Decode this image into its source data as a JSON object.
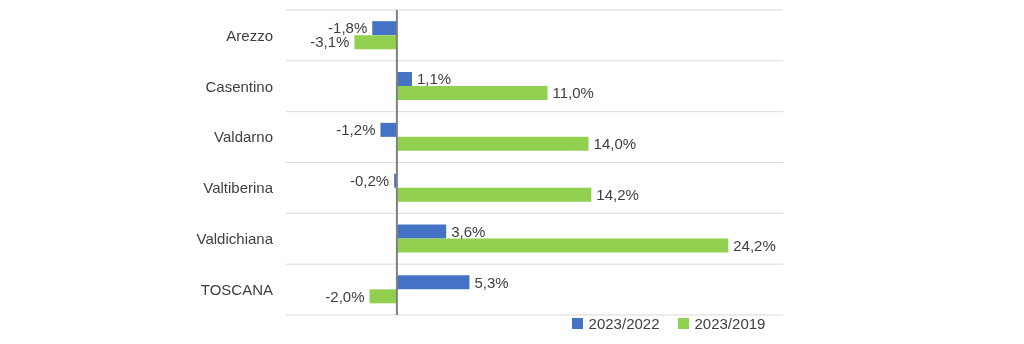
{
  "chart_data": {
    "type": "bar",
    "orientation": "horizontal",
    "categories": [
      "Arezzo",
      "Casentino",
      "Valdarno",
      "Valtiberina",
      "Valdichiana",
      "TOSCANA"
    ],
    "series": [
      {
        "name": "2023/2022",
        "color": "#4472c4",
        "values": [
          -1.8,
          1.1,
          -1.2,
          -0.2,
          3.6,
          5.3
        ],
        "value_labels": [
          "-1,8%",
          "1,1%",
          "-1,2%",
          "-0,2%",
          "3,6%",
          "5,3%"
        ]
      },
      {
        "name": "2023/2019",
        "color": "#92d050",
        "values": [
          -3.1,
          11.0,
          14.0,
          14.2,
          24.2,
          -2.0
        ],
        "value_labels": [
          "-3,1%",
          "11,0%",
          "14,0%",
          "14,2%",
          "24,2%",
          "-2,0%"
        ]
      }
    ],
    "grid": "y",
    "legend": "bottom"
  }
}
